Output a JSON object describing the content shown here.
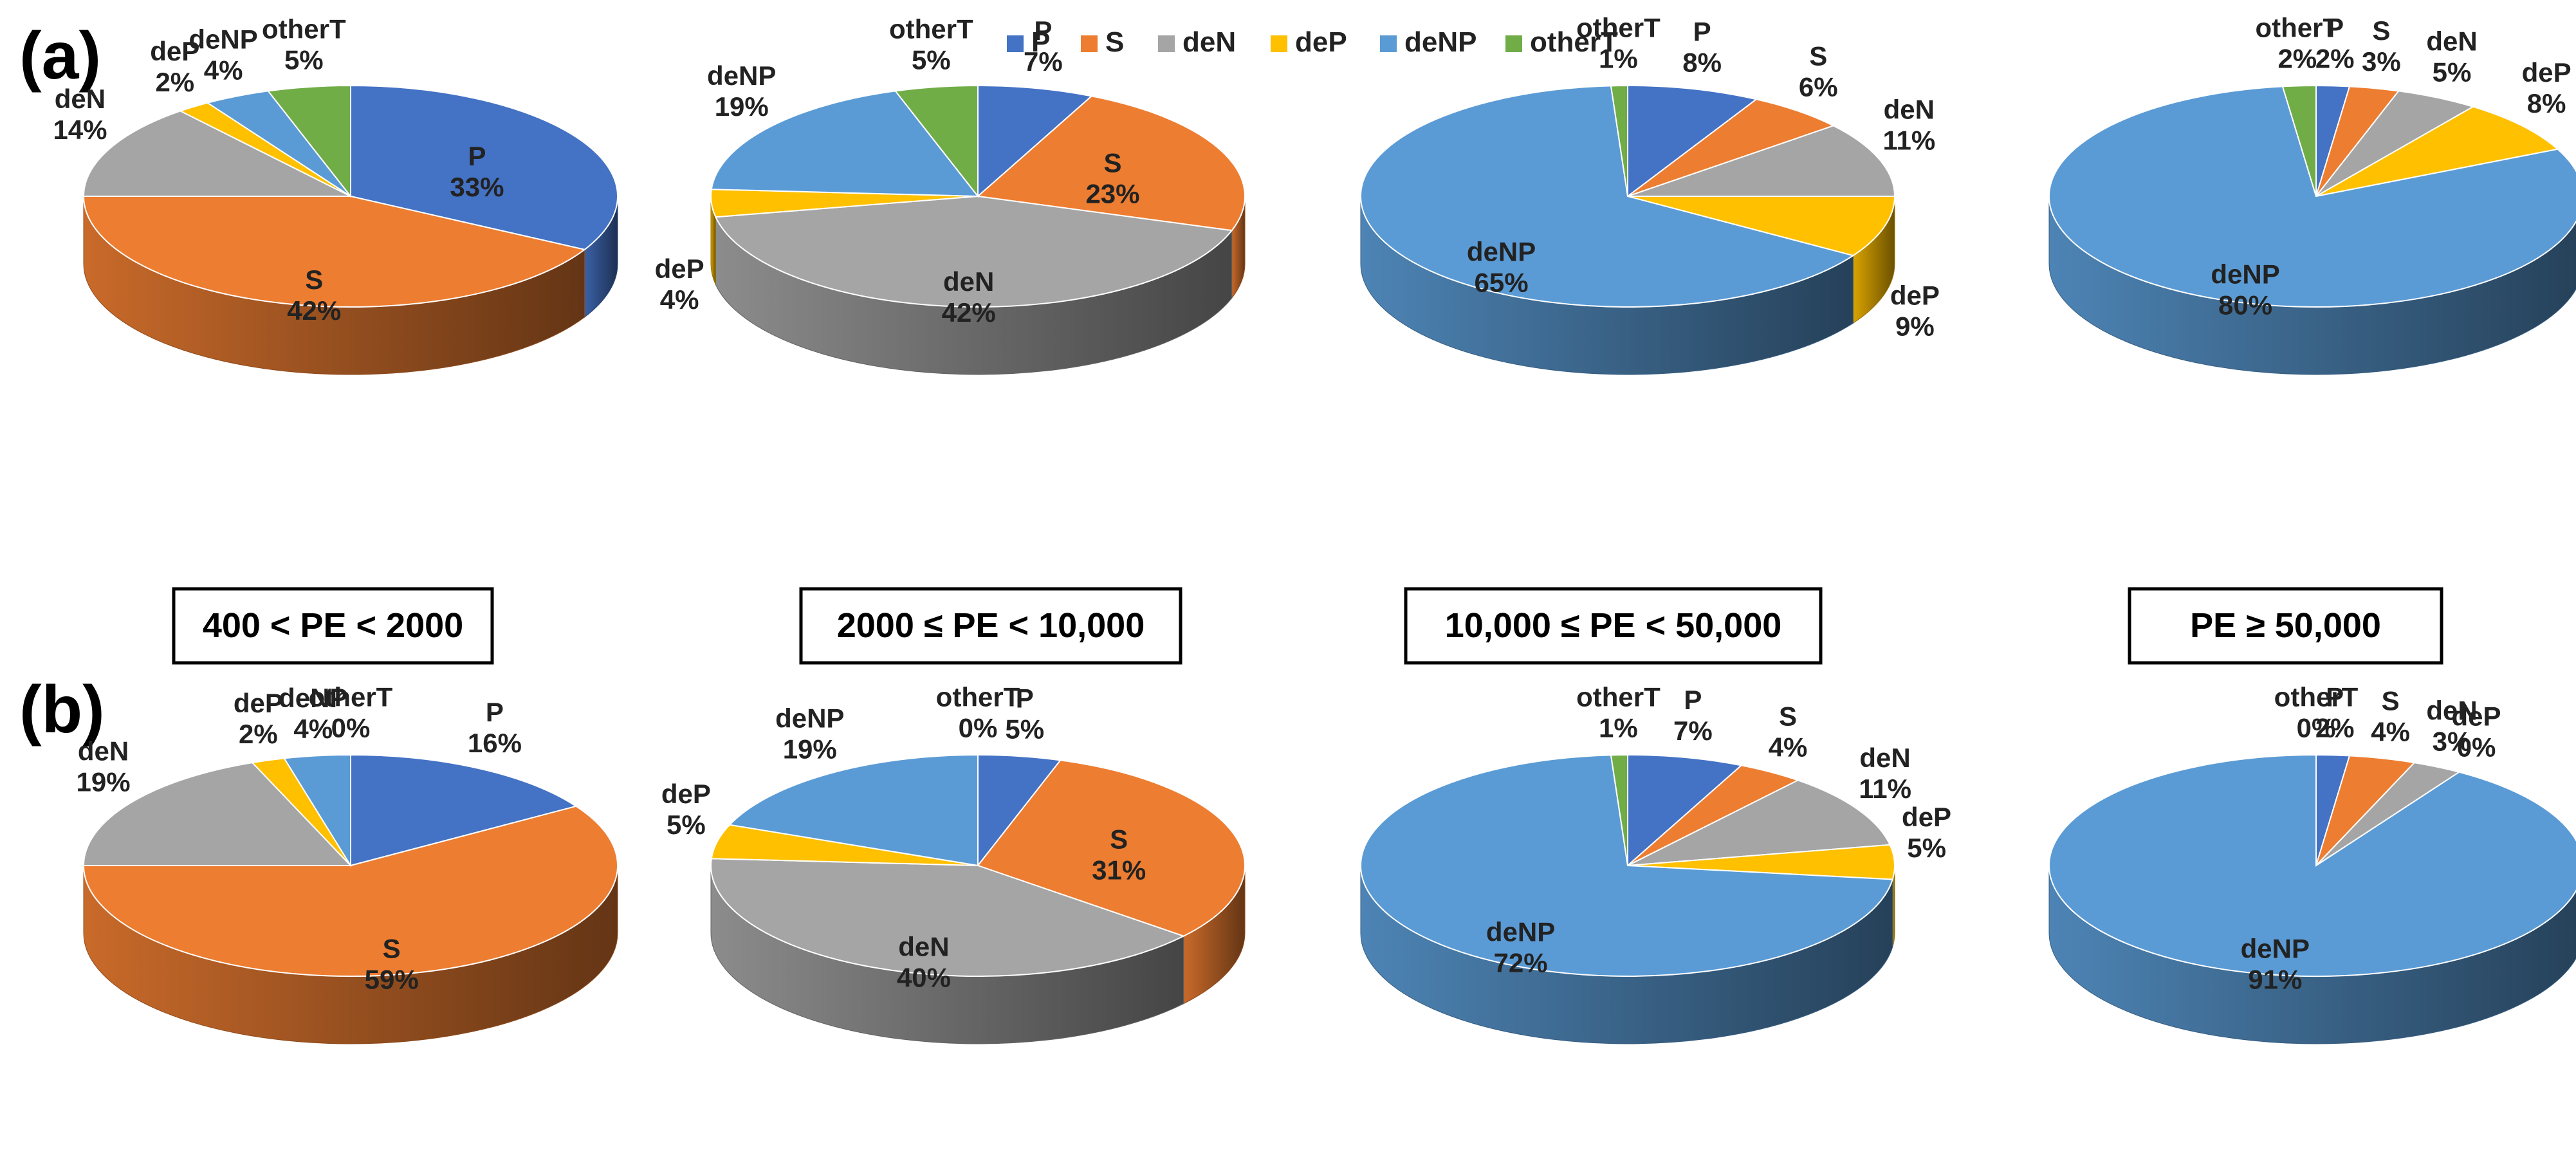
{
  "panels": [
    {
      "label": "(a)"
    },
    {
      "label": "(b)"
    }
  ],
  "legend": [
    {
      "name": "P",
      "color": "#4472C4"
    },
    {
      "name": "S",
      "color": "#ED7D31"
    },
    {
      "name": "deN",
      "color": "#A5A5A5"
    },
    {
      "name": "deP",
      "color": "#FFC000"
    },
    {
      "name": "deNP",
      "color": "#5B9BD5"
    },
    {
      "name": "otherT",
      "color": "#70AD47"
    }
  ],
  "ranges": [
    "400 < PE < 2000",
    "2000 ≤ PE < 10,000",
    "10,000 ≤ PE < 50,000",
    "PE ≥ 50,000"
  ],
  "chart_data": [
    {
      "type": "pie",
      "panel": "(a)",
      "range": "400 < PE < 2000",
      "categories": [
        "P",
        "S",
        "deN",
        "deP",
        "deNP",
        "otherT"
      ],
      "values": [
        33,
        42,
        14,
        2,
        4,
        5
      ],
      "labels": [
        "33%",
        "42%",
        "14%",
        "2%",
        "4%",
        "5%"
      ]
    },
    {
      "type": "pie",
      "panel": "(a)",
      "range": "2000 ≤ PE < 10,000",
      "categories": [
        "P",
        "S",
        "deN",
        "deP",
        "deNP",
        "otherT"
      ],
      "values": [
        7,
        23,
        42,
        4,
        19,
        5
      ],
      "labels": [
        "7%",
        "23%",
        "42%",
        "4%",
        "19%",
        "5%"
      ]
    },
    {
      "type": "pie",
      "panel": "(a)",
      "range": "10,000 ≤ PE < 50,000",
      "categories": [
        "P",
        "S",
        "deN",
        "deP",
        "deNP",
        "otherT"
      ],
      "values": [
        8,
        6,
        11,
        9,
        65,
        1
      ],
      "labels": [
        "8%",
        "6%",
        "11%",
        "9%",
        "65%",
        "1%"
      ]
    },
    {
      "type": "pie",
      "panel": "(a)",
      "range": "PE ≥ 50,000",
      "categories": [
        "P",
        "S",
        "deN",
        "deP",
        "deNP",
        "otherT"
      ],
      "values": [
        2,
        3,
        5,
        8,
        80,
        2
      ],
      "labels": [
        "2%",
        "3%",
        "5%",
        "8%",
        "80%",
        "2%"
      ]
    },
    {
      "type": "pie",
      "panel": "(b)",
      "range": "400 < PE < 2000",
      "categories": [
        "P",
        "S",
        "deN",
        "deP",
        "deNP",
        "otherT"
      ],
      "values": [
        16,
        59,
        19,
        2,
        4,
        0
      ],
      "labels": [
        "16%",
        "59%",
        "19%",
        "2%",
        "4%",
        "0%"
      ]
    },
    {
      "type": "pie",
      "panel": "(b)",
      "range": "2000 ≤ PE < 10,000",
      "categories": [
        "P",
        "S",
        "deN",
        "deP",
        "deNP",
        "otherT"
      ],
      "values": [
        5,
        31,
        40,
        5,
        19,
        0
      ],
      "labels": [
        "5%",
        "31%",
        "40%",
        "5%",
        "19%",
        "0%"
      ]
    },
    {
      "type": "pie",
      "panel": "(b)",
      "range": "10,000 ≤ PE < 50,000",
      "categories": [
        "P",
        "S",
        "deN",
        "deP",
        "deNP",
        "otherT"
      ],
      "values": [
        7,
        4,
        11,
        5,
        72,
        1
      ],
      "labels": [
        "7%",
        "4%",
        "11%",
        "5%",
        "72%",
        "1%"
      ]
    },
    {
      "type": "pie",
      "panel": "(b)",
      "range": "PE ≥ 50,000",
      "categories": [
        "P",
        "S",
        "deN",
        "deP",
        "deNP",
        "otherT"
      ],
      "values": [
        2,
        4,
        3,
        0,
        91,
        0
      ],
      "labels": [
        "2%",
        "4%",
        "3%",
        "0%",
        "91%",
        "0%"
      ]
    }
  ]
}
